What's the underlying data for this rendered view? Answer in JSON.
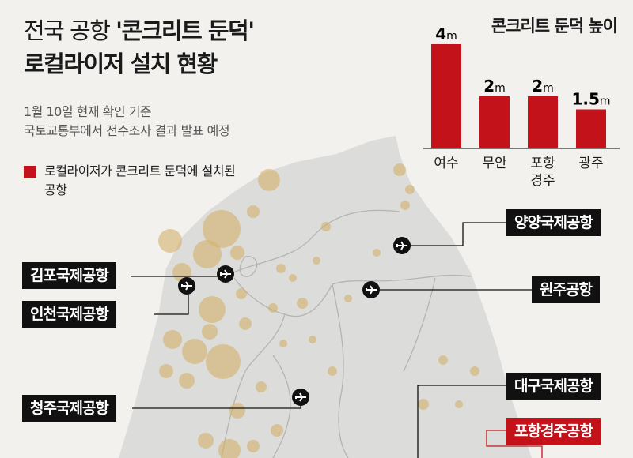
{
  "header": {
    "title_line1_light": "전국 공항 ",
    "title_line1_bold": "'콘크리트 둔덕'",
    "title_line2": "로컬라이저 설치 현황",
    "subtitle_line1": "1월 10일 현재 확인 기준",
    "subtitle_line2": "국토교통부에서 전수조사 결과 발표 예정"
  },
  "legend": {
    "text": "로컬라이저가 콘크리트 둔덕에 설치된 공항",
    "swatch_color": "#c4121a"
  },
  "colors": {
    "accent_red": "#c4121a",
    "label_black": "#111111",
    "land": "#dbdbd9",
    "sea": "#f2f1ee",
    "population_bubble": "#d4b16a"
  },
  "airports": {
    "gimpo": "김포국제공항",
    "incheon": "인천국제공항",
    "cheongju": "청주국제공항",
    "yangyang": "양양국제공항",
    "wonju": "원주공항",
    "daegu": "대구국제공항",
    "pohang_gyeongju": "포항경주공항"
  },
  "chart_data": {
    "type": "bar",
    "title": "콘크리트 둔덕 높이",
    "categories": [
      "여수",
      "무안",
      "포항\n경주",
      "광주"
    ],
    "category_lines": [
      [
        "여수"
      ],
      [
        "무안"
      ],
      [
        "포항",
        "경주"
      ],
      [
        "광주"
      ]
    ],
    "values": [
      4,
      2,
      2,
      1.5
    ],
    "value_labels": [
      "4",
      "2",
      "2",
      "1.5"
    ],
    "unit": "m",
    "ylim": [
      0,
      4
    ],
    "bar_color": "#c4121a",
    "grid": false
  }
}
